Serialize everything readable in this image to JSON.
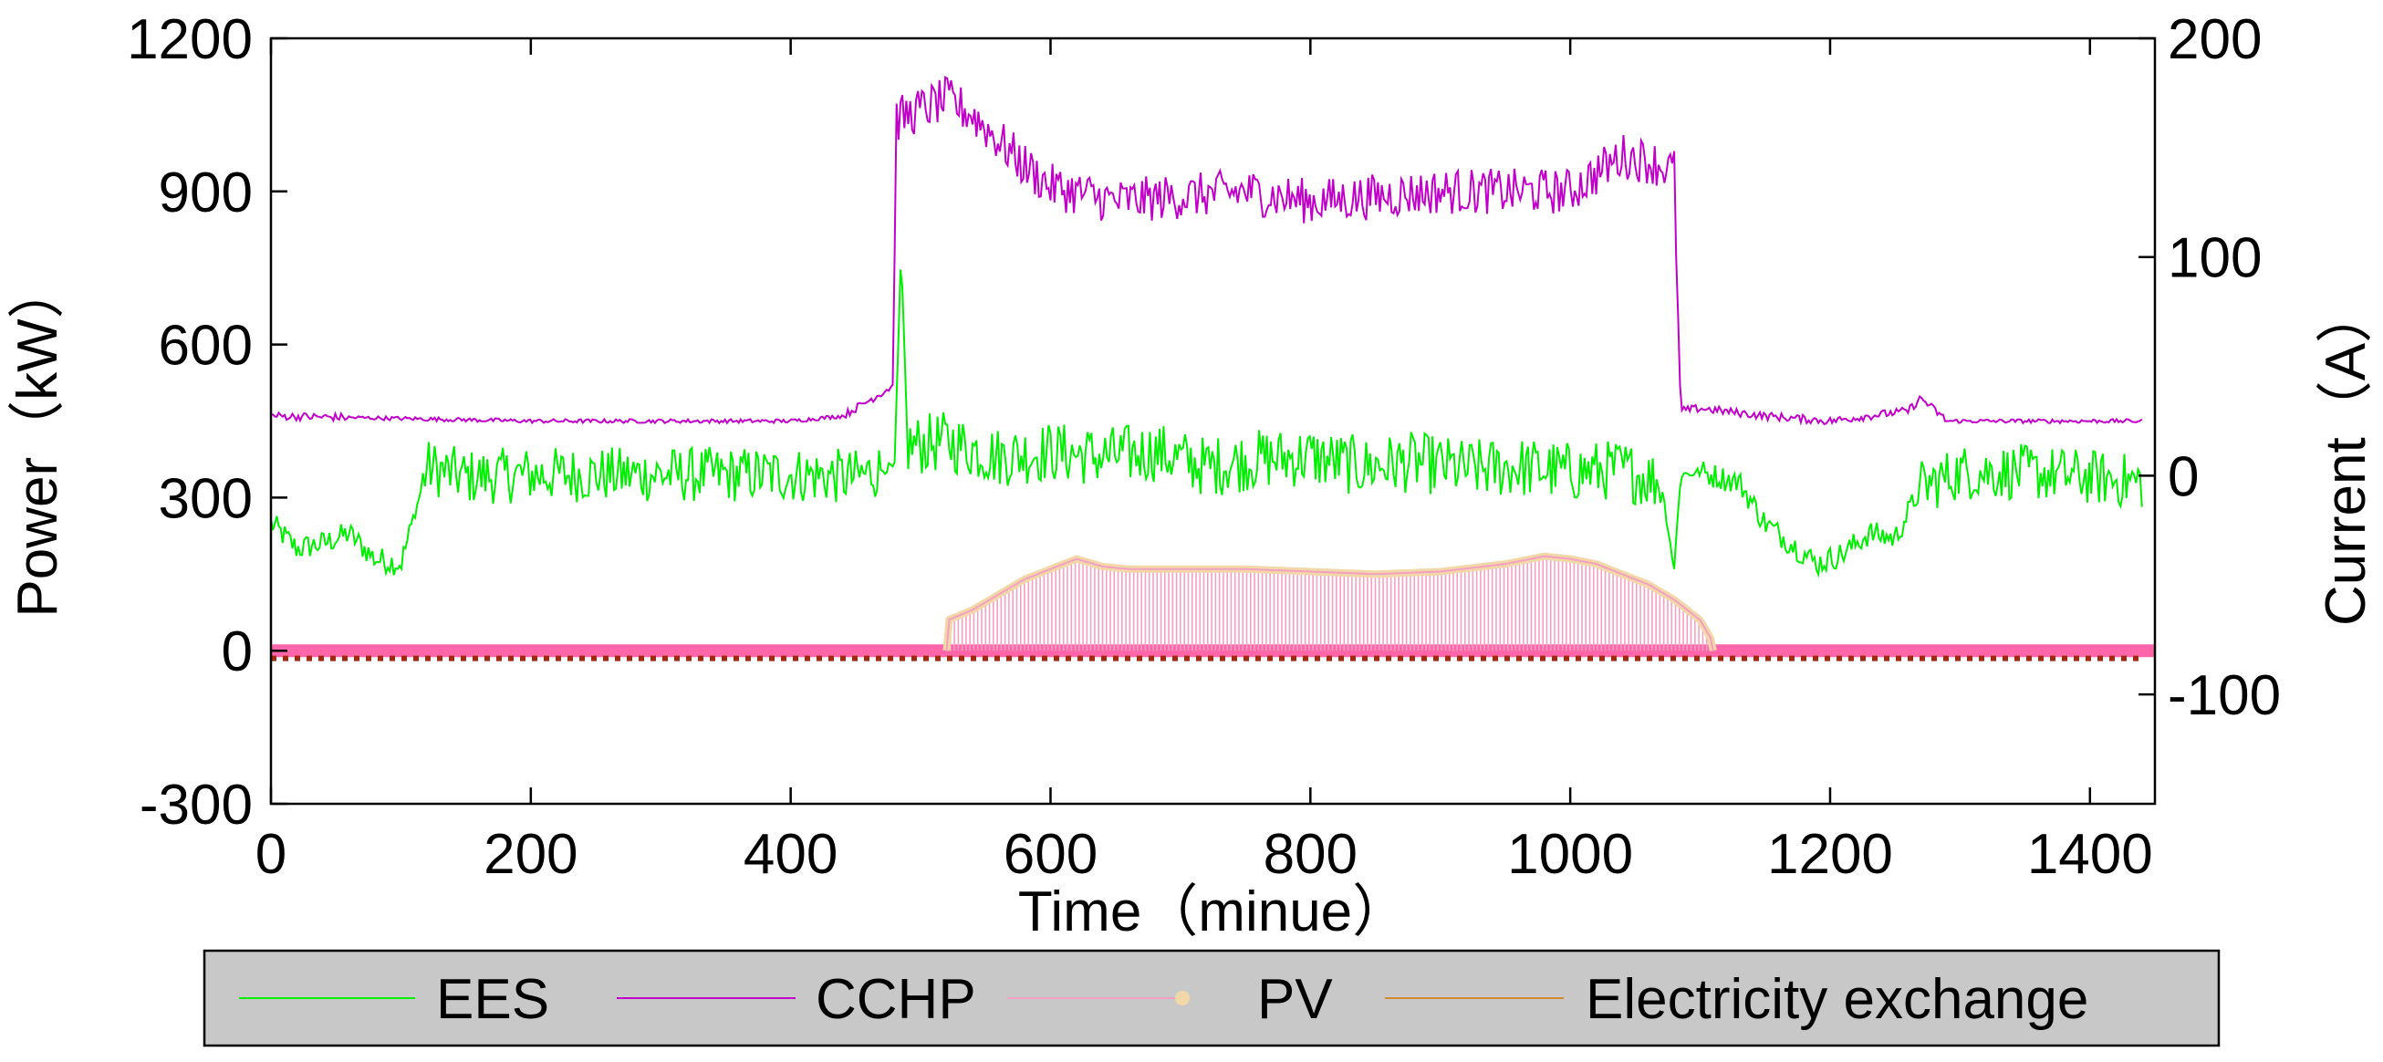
{
  "chart_data": {
    "type": "line",
    "title": "",
    "xlabel": "Time（minue）",
    "ylabel": "Power（kW）",
    "y2label": "Current（A）",
    "xlim": [
      0,
      1450
    ],
    "ylim": [
      -300,
      1200
    ],
    "y2lim": [
      -150,
      200
    ],
    "xticks": [
      "0",
      "200",
      "400",
      "600",
      "800",
      "1000",
      "1200",
      "1400"
    ],
    "yticks": [
      "-300",
      "0",
      "300",
      "600",
      "900",
      "1200"
    ],
    "y2ticks": [
      "-100",
      "0",
      "100",
      "200"
    ],
    "legend_position": "bottom",
    "colors": {
      "EES": "#00ee00",
      "CCHP": "#c000c8",
      "PV": "#f5a0c0",
      "PV_marker": "#f2d7a8",
      "Electricity exchange": "#d08a30",
      "exchange_dots": "#a02a10",
      "baseline": "#ff66aa"
    },
    "series": [
      {
        "name": "EES",
        "x": [
          0,
          20,
          40,
          60,
          80,
          100,
          110,
          120,
          150,
          200,
          250,
          300,
          350,
          400,
          450,
          470,
          480,
          485,
          490,
          520,
          560,
          600,
          640,
          680,
          720,
          760,
          800,
          840,
          880,
          920,
          960,
          1000,
          1040,
          1070,
          1080,
          1085,
          1100,
          1130,
          1150,
          1170,
          1190,
          1210,
          1230,
          1250,
          1270,
          1300,
          1350,
          1400,
          1440
        ],
        "values": [
          250,
          200,
          210,
          230,
          180,
          170,
          260,
          360,
          340,
          345,
          345,
          345,
          345,
          345,
          340,
          355,
          360,
          790,
          400,
          410,
          380,
          390,
          380,
          390,
          360,
          375,
          380,
          360,
          370,
          355,
          360,
          350,
          355,
          330,
          160,
          345,
          350,
          330,
          250,
          210,
          170,
          190,
          230,
          220,
          320,
          350,
          350,
          340,
          330
        ]
      },
      {
        "name": "CCHP",
        "x": [
          0,
          100,
          200,
          300,
          400,
          440,
          460,
          470,
          479,
          481,
          500,
          520,
          540,
          560,
          580,
          600,
          650,
          700,
          750,
          800,
          850,
          900,
          950,
          1000,
          1040,
          1060,
          1080,
          1085,
          1100,
          1150,
          1200,
          1260,
          1270,
          1290,
          1350,
          1440
        ],
        "values": [
          460,
          455,
          450,
          450,
          450,
          460,
          490,
          505,
          520,
          1040,
          1060,
          1080,
          1050,
          1000,
          950,
          910,
          880,
          890,
          900,
          880,
          890,
          900,
          900,
          900,
          970,
          960,
          940,
          470,
          475,
          460,
          450,
          470,
          495,
          450,
          450,
          450
        ]
      },
      {
        "name": "PV",
        "x": [
          0,
          520,
          521,
          540,
          560,
          580,
          600,
          620,
          640,
          660,
          700,
          750,
          800,
          850,
          900,
          950,
          980,
          1000,
          1020,
          1040,
          1060,
          1080,
          1100,
          1108,
          1110,
          1440
        ],
        "values": [
          0,
          0,
          60,
          80,
          110,
          140,
          160,
          180,
          165,
          160,
          160,
          160,
          155,
          150,
          155,
          170,
          185,
          180,
          170,
          150,
          130,
          100,
          60,
          25,
          0,
          0
        ]
      },
      {
        "name": "Electricity exchange",
        "x": [
          0,
          1440
        ],
        "values": [
          -15,
          -15
        ]
      }
    ]
  },
  "legend": {
    "items": [
      "EES",
      "CCHP",
      "PV",
      "Electricity exchange"
    ]
  }
}
